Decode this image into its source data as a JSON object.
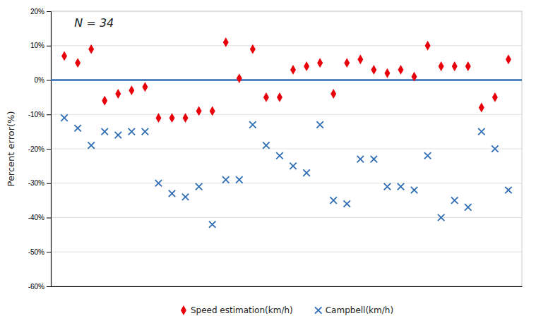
{
  "chart_data": {
    "type": "scatter",
    "y_label": "Percent error(%)",
    "annotation": "N = 34",
    "x": [
      1,
      2,
      3,
      4,
      5,
      6,
      7,
      8,
      9,
      10,
      11,
      12,
      13,
      14,
      15,
      16,
      17,
      18,
      19,
      20,
      21,
      22,
      23,
      24,
      25,
      26,
      27,
      28,
      29,
      30,
      31,
      32,
      33,
      34
    ],
    "series": [
      {
        "name": "Speed estimation(km/h)",
        "color": "#e8000a",
        "marker": "diamond",
        "values": [
          7,
          5,
          9,
          -6,
          -4,
          -3,
          -2,
          -11,
          -11,
          -11,
          -9,
          -9,
          11,
          0.5,
          9,
          -5,
          -5,
          3,
          4,
          5,
          -4,
          5,
          6,
          3,
          2,
          3,
          1,
          10,
          4,
          4,
          4,
          -8,
          -5,
          6
        ]
      },
      {
        "name": "Campbell(km/h)",
        "color": "#2e6db4",
        "marker": "x",
        "values": [
          -11,
          -14,
          -19,
          -15,
          -16,
          -15,
          -15,
          -30,
          -33,
          -34,
          -31,
          -42,
          -29,
          -29,
          -13,
          -19,
          -22,
          -25,
          -27,
          -13,
          -35,
          -36,
          -23,
          -23,
          -31,
          -31,
          -32,
          -22,
          -40,
          -35,
          -37,
          -15,
          -20,
          -32
        ]
      }
    ],
    "reference_lines": [
      {
        "value": 0,
        "color": "#2e6db4"
      }
    ],
    "xlim": [
      0,
      35
    ],
    "ylim": [
      -60,
      20
    ],
    "yticks": [
      {
        "value": -60,
        "label": "-60%"
      },
      {
        "value": -50,
        "label": "-50%"
      },
      {
        "value": -40,
        "label": "-40%"
      },
      {
        "value": -30,
        "label": "-30%"
      },
      {
        "value": -20,
        "label": "-20%"
      },
      {
        "value": -10,
        "label": "-10%"
      },
      {
        "value": 0,
        "label": "0%"
      },
      {
        "value": 10,
        "label": "10%"
      },
      {
        "value": 20,
        "label": "20%"
      }
    ],
    "tick_labels": "y",
    "grid": "y",
    "legend": "bottom"
  }
}
